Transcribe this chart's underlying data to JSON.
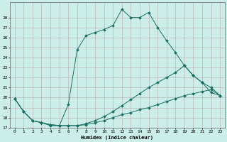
{
  "xlabel": "Humidex (Indice chaleur)",
  "bg_color": "#cceee8",
  "grid_color": "#99cccc",
  "line_color": "#1a6e62",
  "xlim_min": -0.5,
  "xlim_max": 23.5,
  "ylim_min": 17,
  "ylim_max": 29,
  "yticks": [
    17,
    18,
    19,
    20,
    21,
    22,
    23,
    24,
    25,
    26,
    27,
    28
  ],
  "xticks": [
    0,
    1,
    2,
    3,
    4,
    5,
    6,
    7,
    8,
    9,
    10,
    11,
    12,
    13,
    14,
    15,
    16,
    17,
    18,
    19,
    20,
    21,
    22,
    23
  ],
  "line1_x": [
    0,
    1,
    2,
    3,
    4,
    5,
    6,
    7,
    8,
    9,
    10,
    11,
    12,
    13,
    14,
    15,
    16,
    17,
    18,
    19,
    20,
    21,
    22,
    23
  ],
  "line1_y": [
    19.9,
    18.6,
    17.7,
    17.5,
    17.3,
    17.2,
    17.2,
    17.2,
    17.3,
    17.5,
    17.7,
    18.0,
    18.3,
    18.5,
    18.8,
    19.0,
    19.3,
    19.6,
    19.9,
    20.2,
    20.4,
    20.6,
    20.8,
    20.2
  ],
  "line2_x": [
    0,
    1,
    2,
    3,
    4,
    5,
    6,
    7,
    8,
    9,
    10,
    11,
    12,
    13,
    14,
    15,
    16,
    17,
    18,
    19,
    20,
    21,
    22,
    23
  ],
  "line2_y": [
    19.9,
    18.6,
    17.7,
    17.5,
    17.3,
    17.2,
    17.2,
    17.2,
    17.4,
    17.7,
    18.1,
    18.6,
    19.2,
    19.8,
    20.4,
    21.0,
    21.5,
    22.0,
    22.5,
    23.2,
    22.2,
    21.5,
    21.0,
    20.2
  ],
  "line3_x": [
    0,
    1,
    2,
    3,
    4,
    5,
    6,
    7,
    8,
    9,
    10,
    11,
    12,
    13,
    14,
    15,
    16,
    17,
    18,
    19,
    20,
    21,
    22,
    23
  ],
  "line3_y": [
    19.9,
    18.6,
    17.7,
    17.5,
    17.2,
    17.2,
    19.3,
    24.8,
    26.2,
    26.5,
    26.8,
    27.2,
    28.8,
    28.0,
    28.0,
    28.5,
    27.0,
    25.7,
    24.5,
    23.2,
    22.2,
    21.5,
    20.5,
    20.2
  ]
}
